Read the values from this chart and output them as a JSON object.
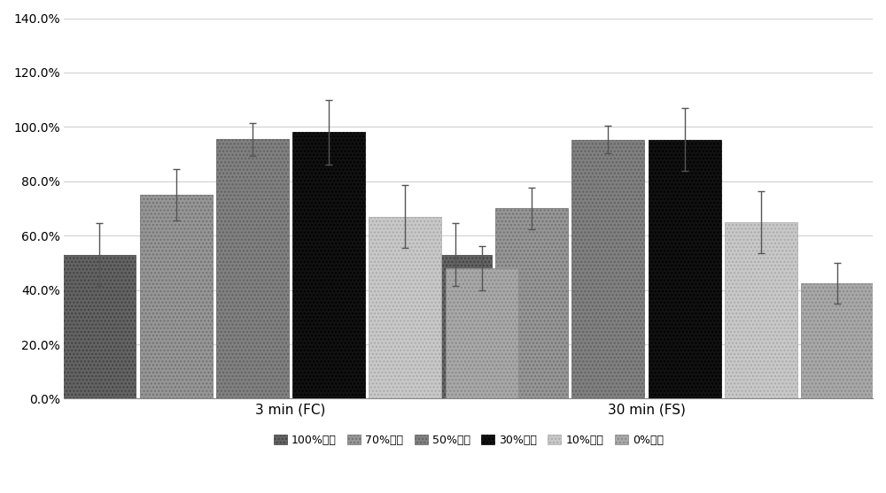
{
  "groups": [
    "3 min (FC)",
    "30 min (FS)"
  ],
  "series_labels": [
    "100%蛋清",
    "70%蛋清",
    "50%蛋清",
    "30%蛋清",
    "10%蛋清",
    "0%蛋清"
  ],
  "values": [
    [
      0.53,
      0.75,
      0.955,
      0.98,
      0.67,
      0.48
    ],
    [
      0.53,
      0.7,
      0.953,
      0.953,
      0.65,
      0.425
    ]
  ],
  "errors": [
    [
      0.115,
      0.095,
      0.06,
      0.12,
      0.115,
      0.08
    ],
    [
      0.115,
      0.075,
      0.05,
      0.115,
      0.115,
      0.075
    ]
  ],
  "bar_colors": [
    "#636363",
    "#969696",
    "#808080",
    "#111111",
    "#c8c8c8",
    "#a8a8a8"
  ],
  "bar_hatches": [
    "....",
    "....",
    "....",
    "....",
    "....",
    "...."
  ],
  "hatch_colors": [
    "#404040",
    "#707070",
    "#606060",
    "#000000",
    "#aaaaaa",
    "#888888"
  ],
  "ylim": [
    0.0,
    1.4
  ],
  "yticks": [
    0.0,
    0.2,
    0.4,
    0.6,
    0.8,
    1.0,
    1.2,
    1.4
  ],
  "ytick_labels": [
    "0.0%",
    "20.0%",
    "40.0%",
    "60.0%",
    "80.0%",
    "100.0%",
    "120.0%",
    "140.0%"
  ],
  "bar_width": 0.09,
  "group_positions": [
    0.28,
    0.72
  ],
  "background_color": "#ffffff",
  "legend_fontsize": 9,
  "tick_fontsize": 10,
  "xlabel_fontsize": 11,
  "grid_color": "#d0d0d0"
}
